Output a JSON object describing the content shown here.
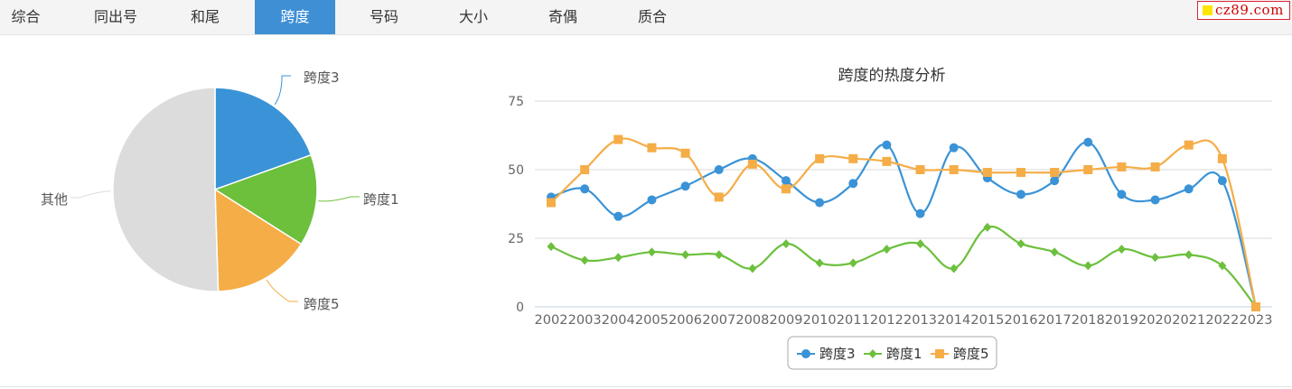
{
  "tabs": [
    {
      "label": "综合",
      "active": false
    },
    {
      "label": "同出号",
      "active": false
    },
    {
      "label": "和尾",
      "active": false
    },
    {
      "label": "跨度",
      "active": true
    },
    {
      "label": "号码",
      "active": false
    },
    {
      "label": "大小",
      "active": false
    },
    {
      "label": "奇偶",
      "active": false
    },
    {
      "label": "质合",
      "active": false
    }
  ],
  "logo": {
    "text": "cz89.com"
  },
  "colors": {
    "series1": "#3a93d6",
    "series2": "#6cc03c",
    "series3": "#f5ad47",
    "other": "#dcdcdc",
    "active_tab": "#3f8fd5"
  },
  "chart_data": [
    {
      "type": "pie",
      "slices": [
        {
          "label": "跨度3",
          "value": 19.5
        },
        {
          "label": "跨度1",
          "value": 14.5
        },
        {
          "label": "跨度5",
          "value": 15.5
        },
        {
          "label": "其他",
          "value": 50.5
        }
      ]
    },
    {
      "type": "line",
      "title": "跨度的热度分析",
      "x": [
        "2002",
        "2003",
        "2004",
        "2005",
        "2006",
        "2007",
        "2008",
        "2009",
        "2010",
        "2011",
        "2012",
        "2013",
        "2014",
        "2015",
        "2016",
        "2017",
        "2018",
        "2019",
        "2020",
        "2021",
        "2022",
        "2023"
      ],
      "series": [
        {
          "name": "跨度3",
          "marker": "circle",
          "values": [
            40,
            43,
            33,
            39,
            44,
            50,
            54,
            46,
            38,
            45,
            59,
            34,
            58,
            47,
            41,
            46,
            60,
            41,
            39,
            43,
            46,
            0
          ]
        },
        {
          "name": "跨度1",
          "marker": "diamond",
          "values": [
            22,
            17,
            18,
            20,
            19,
            19,
            14,
            23,
            16,
            16,
            21,
            23,
            14,
            29,
            23,
            20,
            15,
            21,
            18,
            19,
            15,
            0
          ]
        },
        {
          "name": "跨度5",
          "marker": "square",
          "values": [
            38,
            50,
            61,
            58,
            56,
            40,
            52,
            43,
            54,
            54,
            53,
            50,
            50,
            49,
            49,
            49,
            50,
            51,
            51,
            59,
            54,
            0
          ]
        }
      ],
      "y_ticks": [
        0,
        25,
        50,
        75
      ],
      "ylim": [
        0,
        75
      ],
      "grid": true,
      "legend_position": "bottom-center"
    }
  ]
}
